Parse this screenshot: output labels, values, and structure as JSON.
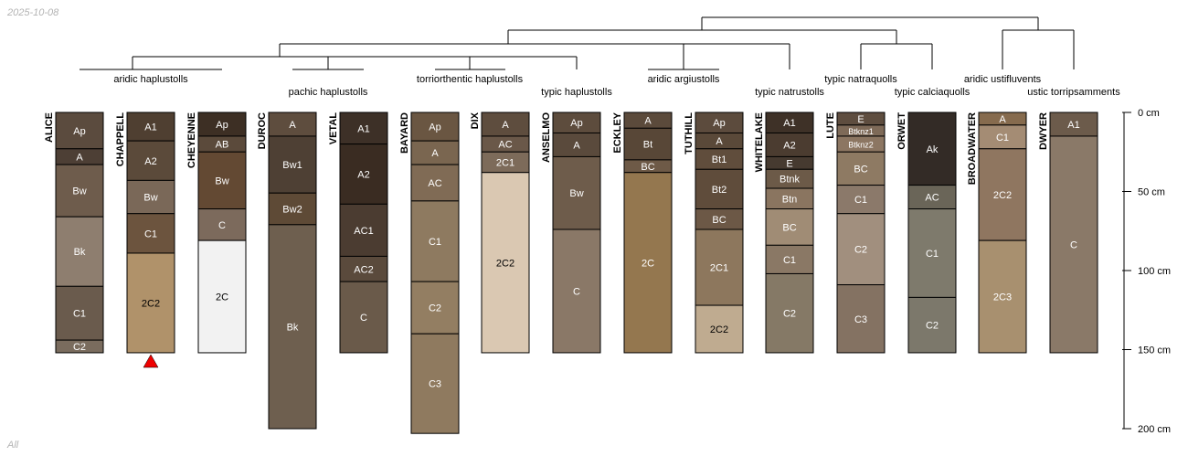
{
  "date_stamp": "2025-10-08",
  "footer_label": "All",
  "depth_axis": {
    "min": 0,
    "max": 200,
    "unit": "cm",
    "ticks": [
      {
        "value": 0,
        "label": "0 cm"
      },
      {
        "value": 50,
        "label": "50 cm"
      },
      {
        "value": 100,
        "label": "100 cm"
      },
      {
        "value": 150,
        "label": "150 cm"
      },
      {
        "value": 200,
        "label": "200 cm"
      }
    ]
  },
  "profiles": [
    {
      "name": "ALICE",
      "horizons": [
        {
          "name": "Ap",
          "top": 0,
          "bottom": 23,
          "color": "#5b4b3e"
        },
        {
          "name": "A",
          "top": 23,
          "bottom": 33,
          "color": "#4d3f35"
        },
        {
          "name": "Bw",
          "top": 33,
          "bottom": 66,
          "color": "#6e5c4c"
        },
        {
          "name": "Bk",
          "top": 66,
          "bottom": 110,
          "color": "#8e7e6f"
        },
        {
          "name": "C1",
          "top": 110,
          "bottom": 144,
          "color": "#6a5b4d"
        },
        {
          "name": "C2",
          "top": 144,
          "bottom": 152,
          "color": "#7a6c5e"
        }
      ]
    },
    {
      "name": "CHAPPELL",
      "horizons": [
        {
          "name": "A1",
          "top": 0,
          "bottom": 18,
          "color": "#4f3f31"
        },
        {
          "name": "A2",
          "top": 18,
          "bottom": 43,
          "color": "#5b4a3a"
        },
        {
          "name": "Bw",
          "top": 43,
          "bottom": 64,
          "color": "#7a6858"
        },
        {
          "name": "C1",
          "top": 64,
          "bottom": 89,
          "color": "#6c543e"
        },
        {
          "name": "2C2",
          "top": 89,
          "bottom": 152,
          "color": "#b0926a"
        }
      ]
    },
    {
      "name": "CHEYENNE",
      "horizons": [
        {
          "name": "Ap",
          "top": 0,
          "bottom": 15,
          "color": "#3d2f24"
        },
        {
          "name": "AB",
          "top": 15,
          "bottom": 25,
          "color": "#5b4a3b"
        },
        {
          "name": "Bw",
          "top": 25,
          "bottom": 61,
          "color": "#634933"
        },
        {
          "name": "C",
          "top": 61,
          "bottom": 81,
          "color": "#7c6a5c"
        },
        {
          "name": "2C",
          "top": 81,
          "bottom": 152,
          "color": "#f2f2f2"
        }
      ]
    },
    {
      "name": "DUROC",
      "horizons": [
        {
          "name": "A",
          "top": 0,
          "bottom": 15,
          "color": "#5e4d3e"
        },
        {
          "name": "Bw1",
          "top": 15,
          "bottom": 51,
          "color": "#4e4034"
        },
        {
          "name": "Bw2",
          "top": 51,
          "bottom": 71,
          "color": "#5e4a36"
        },
        {
          "name": "Bk",
          "top": 71,
          "bottom": 200,
          "color": "#6e5f4f"
        }
      ]
    },
    {
      "name": "VETAL",
      "horizons": [
        {
          "name": "A1",
          "top": 0,
          "bottom": 20,
          "color": "#3d3027"
        },
        {
          "name": "A2",
          "top": 20,
          "bottom": 58,
          "color": "#3a2c22"
        },
        {
          "name": "AC1",
          "top": 58,
          "bottom": 91,
          "color": "#4b3c31"
        },
        {
          "name": "AC2",
          "top": 91,
          "bottom": 107,
          "color": "#5a4a3c"
        },
        {
          "name": "C",
          "top": 107,
          "bottom": 152,
          "color": "#6a5a4a"
        }
      ]
    },
    {
      "name": "BAYARD",
      "horizons": [
        {
          "name": "Ap",
          "top": 0,
          "bottom": 18,
          "color": "#6a5642"
        },
        {
          "name": "A",
          "top": 18,
          "bottom": 33,
          "color": "#7a6650"
        },
        {
          "name": "AC",
          "top": 33,
          "bottom": 56,
          "color": "#806b55"
        },
        {
          "name": "C1",
          "top": 56,
          "bottom": 107,
          "color": "#8e7a60"
        },
        {
          "name": "C2",
          "top": 107,
          "bottom": 140,
          "color": "#937e62"
        },
        {
          "name": "C3",
          "top": 140,
          "bottom": 203,
          "color": "#8f7a5f"
        }
      ]
    },
    {
      "name": "DIX",
      "horizons": [
        {
          "name": "A",
          "top": 0,
          "bottom": 15,
          "color": "#5e4d3e"
        },
        {
          "name": "AC",
          "top": 15,
          "bottom": 25,
          "color": "#6a5849"
        },
        {
          "name": "2C1",
          "top": 25,
          "bottom": 38,
          "color": "#7d6b5a"
        },
        {
          "name": "2C2",
          "top": 38,
          "bottom": 152,
          "color": "#dac8b2"
        }
      ]
    },
    {
      "name": "ANSELMO",
      "horizons": [
        {
          "name": "Ap",
          "top": 0,
          "bottom": 13,
          "color": "#5d4c3d"
        },
        {
          "name": "A",
          "top": 13,
          "bottom": 28,
          "color": "#5a4a3c"
        },
        {
          "name": "Bw",
          "top": 28,
          "bottom": 74,
          "color": "#6e5c4b"
        },
        {
          "name": "C",
          "top": 74,
          "bottom": 152,
          "color": "#8a7867"
        }
      ]
    },
    {
      "name": "ECKLEY",
      "horizons": [
        {
          "name": "A",
          "top": 0,
          "bottom": 10,
          "color": "#5b4a3b"
        },
        {
          "name": "Bt",
          "top": 10,
          "bottom": 30,
          "color": "#584737"
        },
        {
          "name": "BC",
          "top": 30,
          "bottom": 38,
          "color": "#6e5a47"
        },
        {
          "name": "2C",
          "top": 38,
          "bottom": 152,
          "color": "#94774f"
        }
      ]
    },
    {
      "name": "TUTHILL",
      "horizons": [
        {
          "name": "Ap",
          "top": 0,
          "bottom": 13,
          "color": "#5c4b3d"
        },
        {
          "name": "A",
          "top": 13,
          "bottom": 23,
          "color": "#5a4939"
        },
        {
          "name": "Bt1",
          "top": 23,
          "bottom": 36,
          "color": "#604d3c"
        },
        {
          "name": "Bt2",
          "top": 36,
          "bottom": 61,
          "color": "#5f4c3b"
        },
        {
          "name": "BC",
          "top": 61,
          "bottom": 74,
          "color": "#6c5846"
        },
        {
          "name": "2C1",
          "top": 74,
          "bottom": 122,
          "color": "#8d775d"
        },
        {
          "name": "2C2",
          "top": 122,
          "bottom": 152,
          "color": "#bfab90"
        }
      ]
    },
    {
      "name": "WHITELAKE",
      "horizons": [
        {
          "name": "A1",
          "top": 0,
          "bottom": 13,
          "color": "#3e3127"
        },
        {
          "name": "A2",
          "top": 13,
          "bottom": 28,
          "color": "#4b3c30"
        },
        {
          "name": "E",
          "top": 28,
          "bottom": 36,
          "color": "#463a30"
        },
        {
          "name": "Btnk",
          "top": 36,
          "bottom": 48,
          "color": "#6c5a48"
        },
        {
          "name": "Btn",
          "top": 48,
          "bottom": 61,
          "color": "#8a7560"
        },
        {
          "name": "BC",
          "top": 61,
          "bottom": 84,
          "color": "#a08c75"
        },
        {
          "name": "C1",
          "top": 84,
          "bottom": 102,
          "color": "#8a7865"
        },
        {
          "name": "C2",
          "top": 102,
          "bottom": 152,
          "color": "#857966"
        }
      ]
    },
    {
      "name": "LUTE",
      "horizons": [
        {
          "name": "E",
          "top": 0,
          "bottom": 8,
          "color": "#5e4d3f"
        },
        {
          "name": "Btknz1",
          "top": 8,
          "bottom": 15,
          "color": "#7e6a58"
        },
        {
          "name": "Btknz2",
          "top": 15,
          "bottom": 25,
          "color": "#8c7662"
        },
        {
          "name": "BC",
          "top": 25,
          "bottom": 46,
          "color": "#8e7a63"
        },
        {
          "name": "C1",
          "top": 46,
          "bottom": 64,
          "color": "#8b796a"
        },
        {
          "name": "C2",
          "top": 64,
          "bottom": 109,
          "color": "#a18f7e"
        },
        {
          "name": "C3",
          "top": 109,
          "bottom": 152,
          "color": "#847262"
        }
      ]
    },
    {
      "name": "ORWET",
      "horizons": [
        {
          "name": "Ak",
          "top": 0,
          "bottom": 46,
          "color": "#332b26"
        },
        {
          "name": "AC",
          "top": 46,
          "bottom": 61,
          "color": "#6a6558"
        },
        {
          "name": "C1",
          "top": 61,
          "bottom": 117,
          "color": "#7e7a6c"
        },
        {
          "name": "C2",
          "top": 117,
          "bottom": 152,
          "color": "#7c786b"
        }
      ]
    },
    {
      "name": "BROADWATER",
      "horizons": [
        {
          "name": "A",
          "top": 0,
          "bottom": 8,
          "color": "#866b4e"
        },
        {
          "name": "C1",
          "top": 8,
          "bottom": 23,
          "color": "#a48c74"
        },
        {
          "name": "2C2",
          "top": 23,
          "bottom": 81,
          "color": "#8f7660"
        },
        {
          "name": "2C3",
          "top": 81,
          "bottom": 152,
          "color": "#a8906f"
        }
      ]
    },
    {
      "name": "DWYER",
      "horizons": [
        {
          "name": "A1",
          "top": 0,
          "bottom": 15,
          "color": "#6c5b4b"
        },
        {
          "name": "C",
          "top": 15,
          "bottom": 152,
          "color": "#8a7968"
        }
      ]
    }
  ],
  "taxa": [
    {
      "label": "aridic haplustolls"
    },
    {
      "label": "pachic haplustolls"
    },
    {
      "label": "torriorthentic haplustolls"
    },
    {
      "label": "typic haplustolls"
    },
    {
      "label": "aridic argiustolls"
    },
    {
      "label": "typic natrustolls"
    },
    {
      "label": "typic natraquolls"
    },
    {
      "label": "typic calciaquolls"
    },
    {
      "label": "aridic ustifluvents"
    },
    {
      "label": "ustic torripsamments"
    }
  ],
  "marker": {
    "profile": "CHAPPELL",
    "color": "#ee0000"
  }
}
